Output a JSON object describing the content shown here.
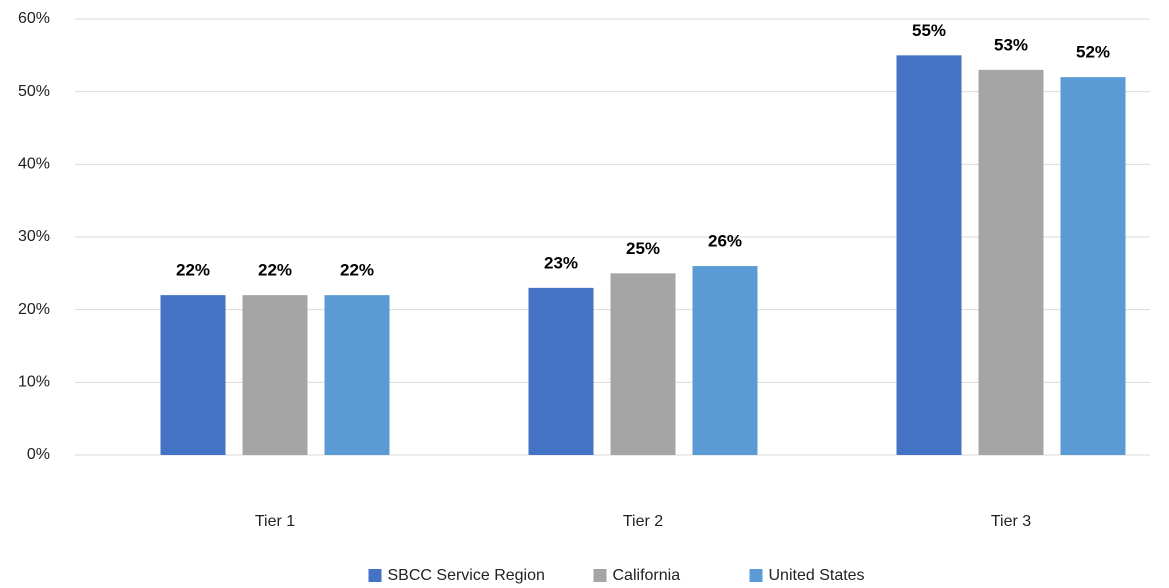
{
  "chart_data": {
    "type": "bar",
    "categories": [
      "Tier 1",
      "Tier 2",
      "Tier 3"
    ],
    "series": [
      {
        "name": "SBCC Service Region",
        "color": "#4472c4",
        "values": [
          22,
          23,
          55
        ],
        "value_labels": [
          "22%",
          "23%",
          "55%"
        ]
      },
      {
        "name": "California",
        "color": "#a5a5a5",
        "values": [
          22,
          25,
          53
        ],
        "value_labels": [
          "22%",
          "25%",
          "53%"
        ]
      },
      {
        "name": "United States",
        "color": "#5b9bd5",
        "values": [
          22,
          26,
          52
        ],
        "value_labels": [
          "22%",
          "26%",
          "52%"
        ]
      }
    ],
    "ylim": [
      0,
      60
    ],
    "yticks": [
      {
        "value": 0,
        "label": "0%"
      },
      {
        "value": 10,
        "label": "10%"
      },
      {
        "value": 20,
        "label": "20%"
      },
      {
        "value": 30,
        "label": "30%"
      },
      {
        "value": 40,
        "label": "40%"
      },
      {
        "value": 50,
        "label": "50%"
      },
      {
        "value": 60,
        "label": "60%"
      }
    ],
    "grid": true,
    "legend": "bottom"
  }
}
